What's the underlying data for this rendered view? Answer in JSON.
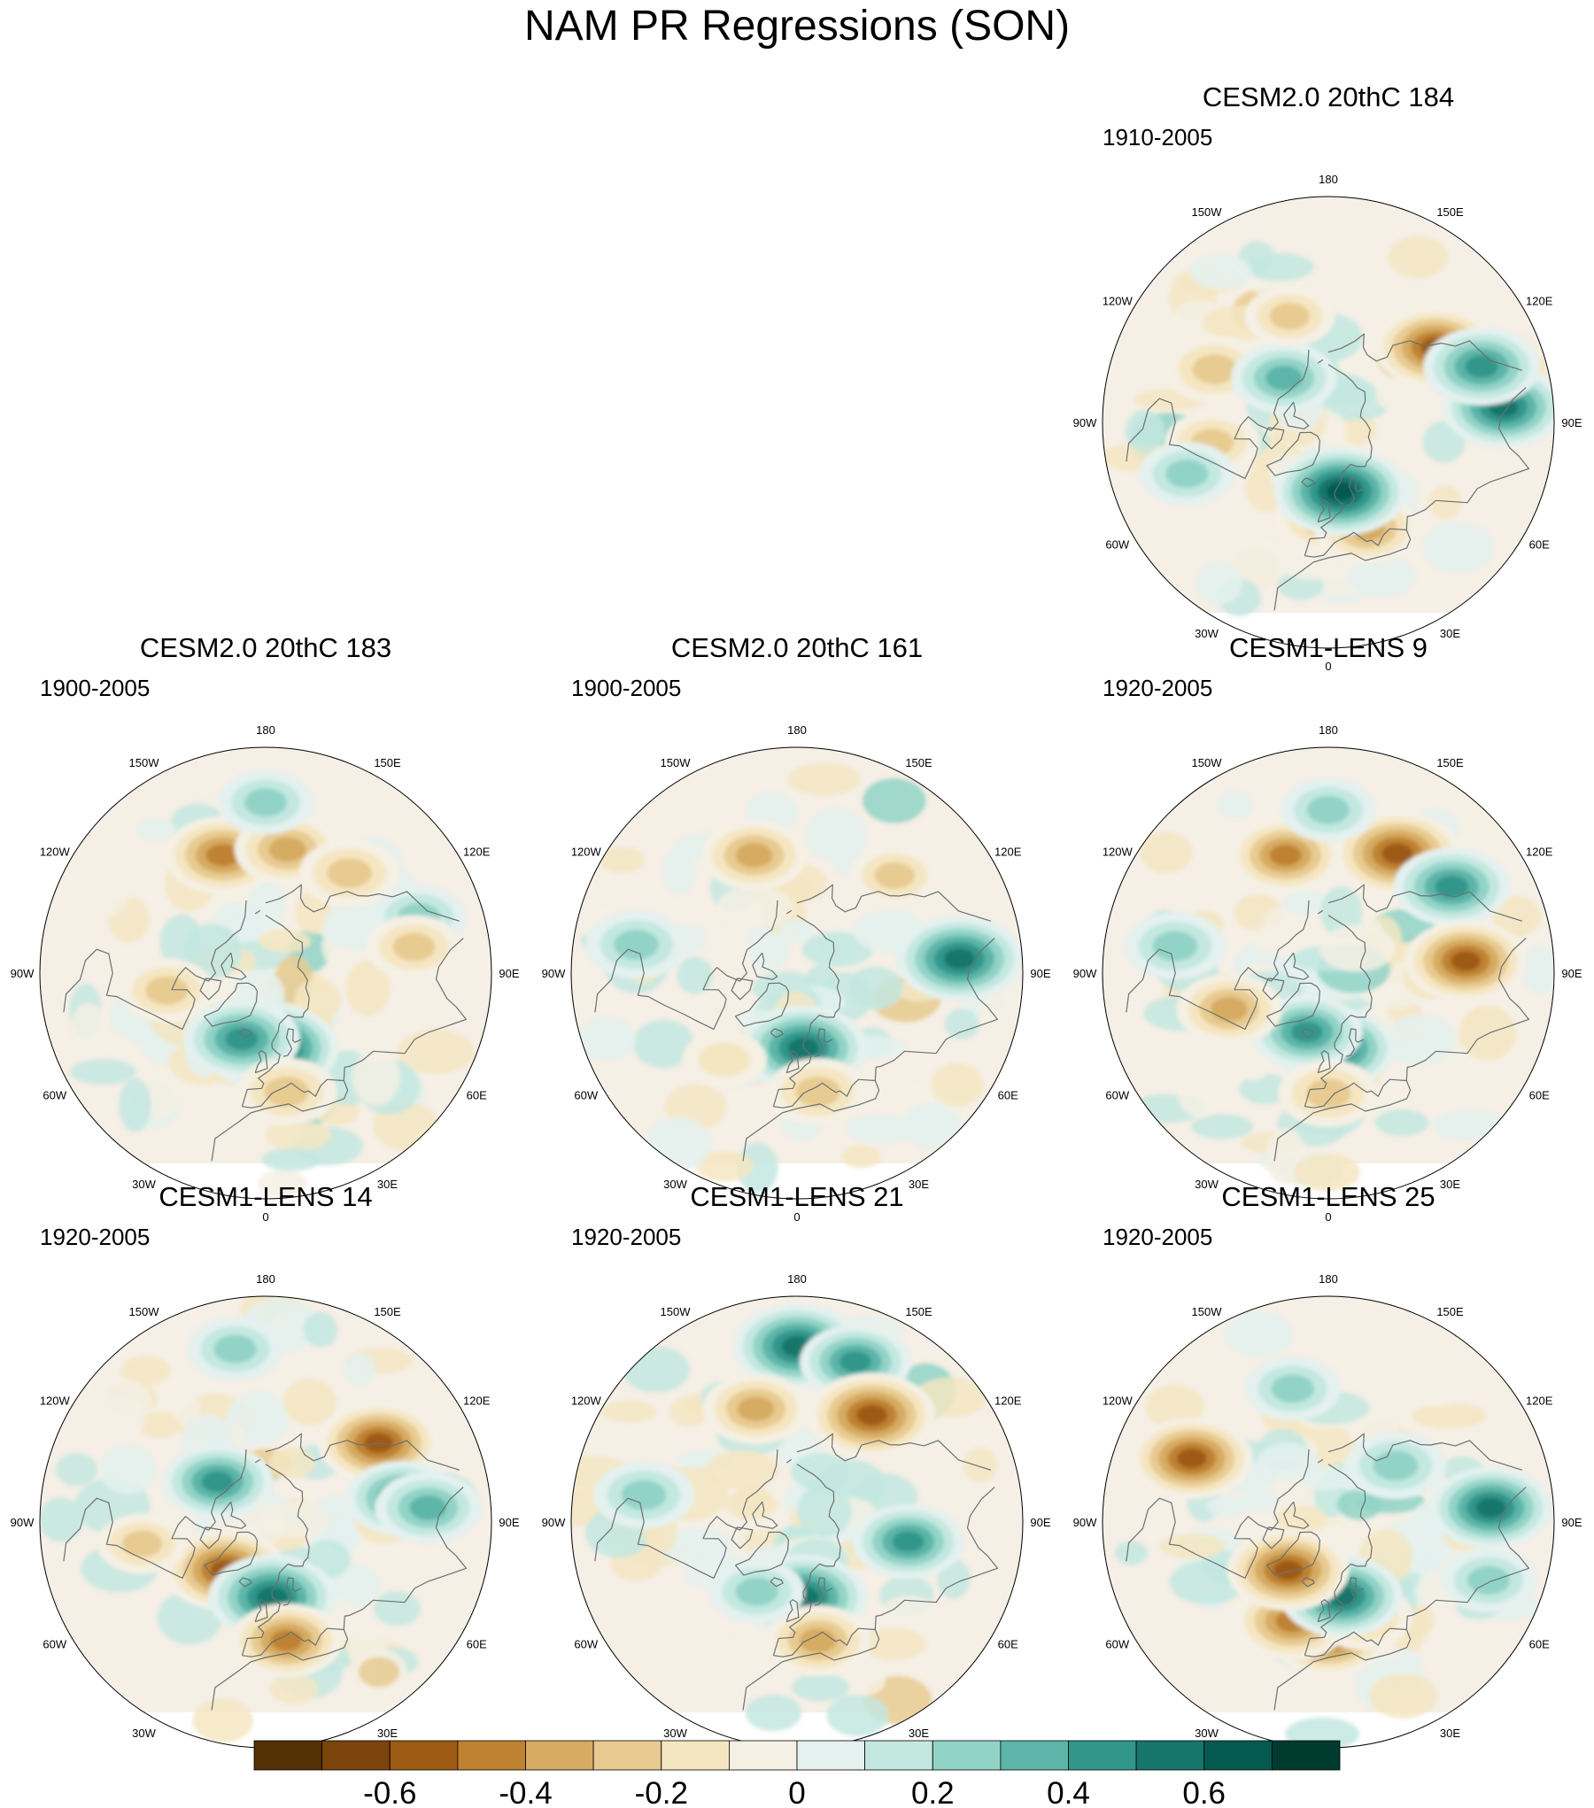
{
  "title": "NAM PR Regressions (SON)",
  "panels": [
    {
      "title": "CESM2.0 20thC 184",
      "period": "1910-2005",
      "seed": 184,
      "anomalies": [
        {
          "lon": 0,
          "lat": 52,
          "v": -0.4
        },
        {
          "lon": 20,
          "lat": 45,
          "v": -0.4
        },
        {
          "lon": 10,
          "lat": 62,
          "v": 0.65
        },
        {
          "lon": -80,
          "lat": 43,
          "v": -0.3
        },
        {
          "lon": -115,
          "lat": 40,
          "v": -0.35
        },
        {
          "lon": 125,
          "lat": 38,
          "v": -0.55
        },
        {
          "lon": 95,
          "lat": 20,
          "v": 0.55
        },
        {
          "lon": 110,
          "lat": 25,
          "v": 0.5
        },
        {
          "lon": -135,
          "lat": 65,
          "v": 0.4
        },
        {
          "lon": -70,
          "lat": 30,
          "v": 0.3
        },
        {
          "lon": -160,
          "lat": 45,
          "v": -0.25
        }
      ]
    },
    {
      "title": "CESM2.0 20thC 183",
      "period": "1900-2005",
      "seed": 183,
      "anomalies": [
        {
          "lon": -160,
          "lat": 40,
          "v": -0.5
        },
        {
          "lon": 170,
          "lat": 40,
          "v": -0.4
        },
        {
          "lon": 140,
          "lat": 38,
          "v": -0.35
        },
        {
          "lon": 5,
          "lat": 60,
          "v": 0.65
        },
        {
          "lon": -20,
          "lat": 62,
          "v": 0.5
        },
        {
          "lon": 10,
          "lat": 42,
          "v": -0.35
        },
        {
          "lon": -80,
          "lat": 50,
          "v": -0.3
        },
        {
          "lon": 180,
          "lat": 22,
          "v": 0.3
        },
        {
          "lon": 110,
          "lat": 25,
          "v": 0.3
        },
        {
          "lon": 100,
          "lat": 30,
          "v": -0.3
        }
      ]
    },
    {
      "title": "CESM2.0 20thC 161",
      "period": "1900-2005",
      "seed": 161,
      "anomalies": [
        {
          "lon": -160,
          "lat": 40,
          "v": -0.4
        },
        {
          "lon": 95,
          "lat": 25,
          "v": 0.6
        },
        {
          "lon": 5,
          "lat": 60,
          "v": 0.6
        },
        {
          "lon": 10,
          "lat": 42,
          "v": -0.35
        },
        {
          "lon": -100,
          "lat": 25,
          "v": 0.35
        },
        {
          "lon": 135,
          "lat": 35,
          "v": -0.25
        },
        {
          "lon": -40,
          "lat": 45,
          "v": -0.2
        }
      ]
    },
    {
      "title": "CESM1-LENS 9",
      "period": "1920-2005",
      "seed": 9,
      "anomalies": [
        {
          "lon": -160,
          "lat": 40,
          "v": -0.45
        },
        {
          "lon": 150,
          "lat": 35,
          "v": -0.6
        },
        {
          "lon": 125,
          "lat": 30,
          "v": 0.5
        },
        {
          "lon": 5,
          "lat": 60,
          "v": 0.55
        },
        {
          "lon": -20,
          "lat": 65,
          "v": 0.45
        },
        {
          "lon": -70,
          "lat": 48,
          "v": -0.4
        },
        {
          "lon": 0,
          "lat": 42,
          "v": -0.35
        },
        {
          "lon": 95,
          "lat": 35,
          "v": -0.55
        },
        {
          "lon": -100,
          "lat": 28,
          "v": 0.35
        },
        {
          "lon": 180,
          "lat": 25,
          "v": 0.3
        }
      ]
    },
    {
      "title": "CESM1-LENS 14",
      "period": "1920-2005",
      "seed": 14,
      "anomalies": [
        {
          "lon": 125,
          "lat": 35,
          "v": -0.55
        },
        {
          "lon": -40,
          "lat": 65,
          "v": -0.55
        },
        {
          "lon": 5,
          "lat": 60,
          "v": 0.6
        },
        {
          "lon": 10,
          "lat": 42,
          "v": -0.45
        },
        {
          "lon": -170,
          "lat": 20,
          "v": 0.3
        },
        {
          "lon": 100,
          "lat": 35,
          "v": 0.45
        },
        {
          "lon": 95,
          "lat": 25,
          "v": 0.4
        },
        {
          "lon": -130,
          "lat": 65,
          "v": 0.45
        },
        {
          "lon": -80,
          "lat": 40,
          "v": -0.25
        }
      ]
    },
    {
      "title": "CESM1-LENS 21",
      "period": "1920-2005",
      "seed": 21,
      "anomalies": [
        {
          "lon": 180,
          "lat": 20,
          "v": 0.6
        },
        {
          "lon": 160,
          "lat": 22,
          "v": 0.45
        },
        {
          "lon": 145,
          "lat": 38,
          "v": -0.6
        },
        {
          "lon": -160,
          "lat": 42,
          "v": -0.4
        },
        {
          "lon": 5,
          "lat": 60,
          "v": 0.6
        },
        {
          "lon": 10,
          "lat": 42,
          "v": -0.4
        },
        {
          "lon": 80,
          "lat": 45,
          "v": 0.45
        },
        {
          "lon": -100,
          "lat": 28,
          "v": 0.35
        },
        {
          "lon": -30,
          "lat": 58,
          "v": 0.3
        }
      ]
    },
    {
      "title": "CESM1-LENS 25",
      "period": "1920-2005",
      "seed": 25,
      "anomalies": [
        {
          "lon": 0,
          "lat": 45,
          "v": -0.55
        },
        {
          "lon": -20,
          "lat": 48,
          "v": -0.5
        },
        {
          "lon": 20,
          "lat": 50,
          "v": -0.35
        },
        {
          "lon": 10,
          "lat": 60,
          "v": 0.55
        },
        {
          "lon": -40,
          "lat": 65,
          "v": -0.55
        },
        {
          "lon": 95,
          "lat": 25,
          "v": 0.55
        },
        {
          "lon": 70,
          "lat": 22,
          "v": 0.3
        },
        {
          "lon": -115,
          "lat": 30,
          "v": -0.55
        },
        {
          "lon": 130,
          "lat": 55,
          "v": 0.35
        },
        {
          "lon": -165,
          "lat": 35,
          "v": 0.3
        }
      ]
    }
  ],
  "lon_labels": [
    "180",
    "150E",
    "120E",
    "90E",
    "60E",
    "30E",
    "0",
    "30W",
    "60W",
    "90W",
    "120W",
    "150W"
  ],
  "colorbar": {
    "levels": [
      -0.7,
      -0.6,
      -0.5,
      -0.4,
      -0.3,
      -0.2,
      -0.1,
      0,
      0.1,
      0.2,
      0.3,
      0.4,
      0.5,
      0.6,
      0.7
    ],
    "colors": [
      "#543005",
      "#7a440a",
      "#9d5a12",
      "#bf8230",
      "#d6ab62",
      "#e8cb91",
      "#f5e6c2",
      "#f5f0e4",
      "#e4f1ef",
      "#c3e8e0",
      "#92d3c7",
      "#5cb5a8",
      "#33968b",
      "#16766c",
      "#055a50",
      "#003b30"
    ],
    "labels": [
      "-0.6",
      "-0.4",
      "-0.2",
      "0",
      "0.2",
      "0.4",
      "0.6"
    ]
  }
}
